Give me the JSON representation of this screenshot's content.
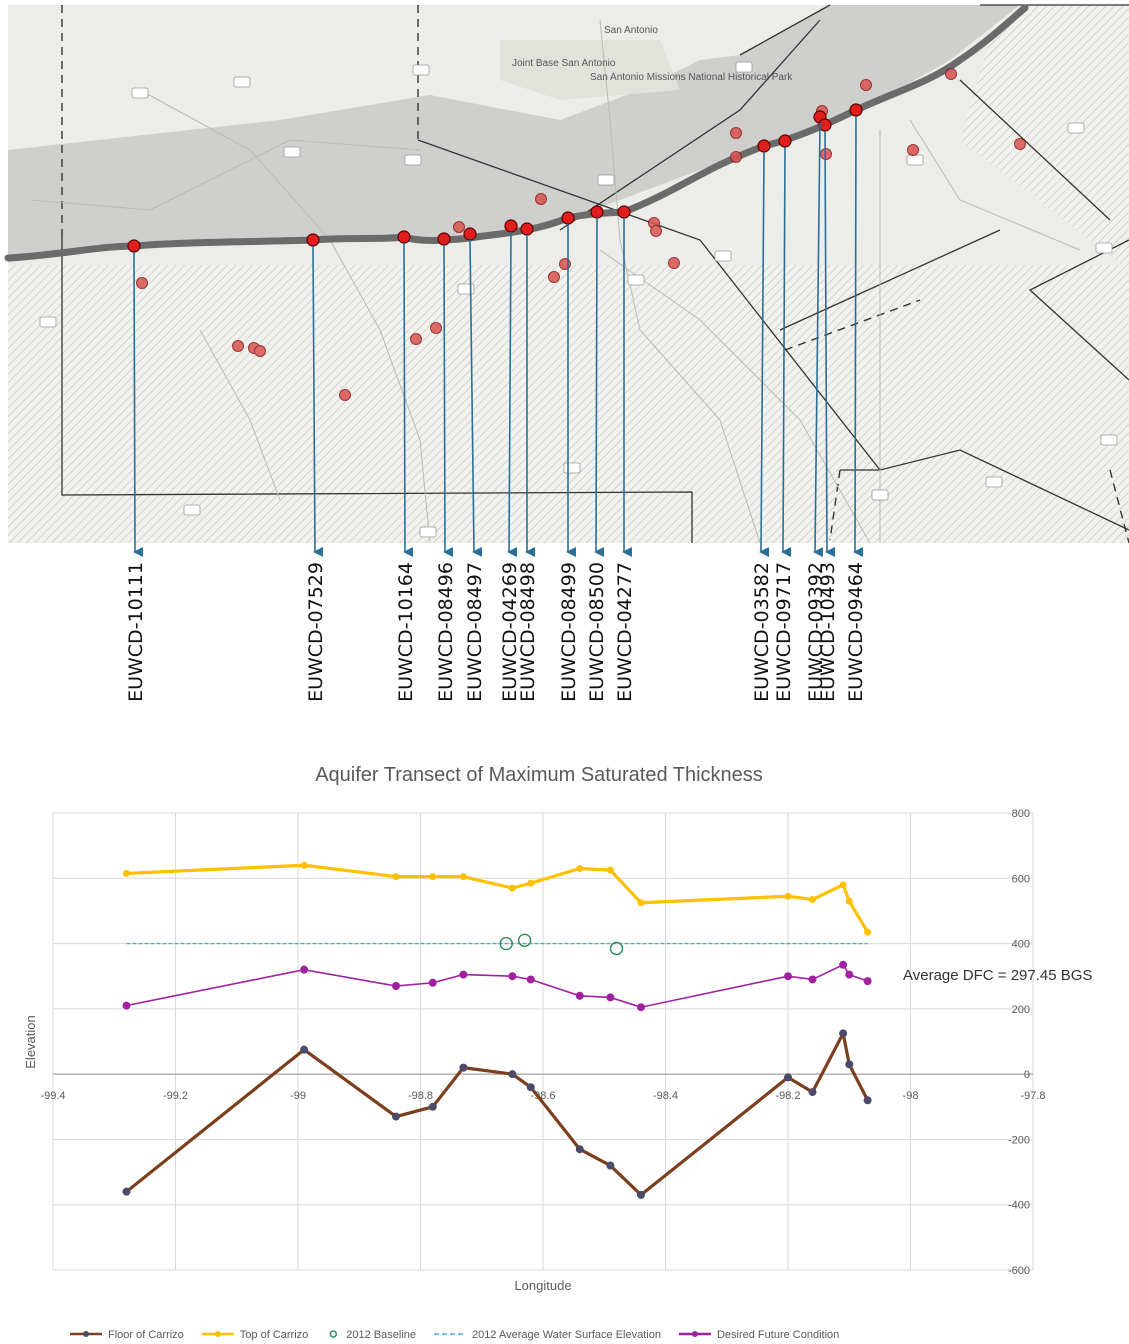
{
  "map": {
    "place_labels": [
      "San Antonio",
      "Joint Base San Antonio",
      "San Antonio Missions National Historical Park"
    ],
    "well_labels": [
      "EUWCD-10111",
      "EUWCD-07529",
      "EUWCD-10164",
      "EUWCD-08496",
      "EUWCD-08497",
      "EUWCD-04269",
      "EUWCD-08498",
      "EUWCD-08499",
      "EUWCD-08500",
      "EUWCD-04277",
      "EUWCD-03582",
      "EUWCD-09717",
      "EUWCD-09392",
      "EUWCD-10493",
      "EUWCD-09464"
    ],
    "colors": {
      "well_marker": "#d62828",
      "pointer_line": "#2a6f97",
      "outcrop_band": "#666666",
      "area_fill": "#d3d3d3"
    }
  },
  "chart_data": {
    "type": "line",
    "title": "Aquifer Transect of Maximum Saturated Thickness",
    "xlabel": "Longitude",
    "ylabel": "Elevation",
    "xlim": [
      -99.4,
      -97.8
    ],
    "ylim": [
      -600,
      800
    ],
    "x_ticks": [
      "-99.4",
      "-99.2",
      "-99",
      "-98.8",
      "-98.6",
      "-98.4",
      "-98.2",
      "-98",
      "-97.8"
    ],
    "y_ticks": [
      "800",
      "600",
      "400",
      "200",
      "0",
      "-200",
      "-400",
      "-600"
    ],
    "grid": true,
    "legend_position": "bottom",
    "series": [
      {
        "name": "Floor of Carrizo",
        "color": "#7b3f1d",
        "marker_color": "#4a4a6a",
        "x": [
          -99.28,
          -98.99,
          -98.84,
          -98.78,
          -98.73,
          -98.65,
          -98.62,
          -98.54,
          -98.49,
          -98.44,
          -98.2,
          -98.16,
          -98.11,
          -98.1,
          -98.07
        ],
        "y": [
          -360,
          75,
          -130,
          -100,
          20,
          0,
          -40,
          -230,
          -280,
          -370,
          -10,
          -55,
          125,
          30,
          -80
        ]
      },
      {
        "name": "Top of Carrizo",
        "color": "#ffc000",
        "marker_color": "#ffc000",
        "x": [
          -99.28,
          -98.99,
          -98.84,
          -98.78,
          -98.73,
          -98.65,
          -98.62,
          -98.54,
          -98.49,
          -98.44,
          -98.2,
          -98.16,
          -98.11,
          -98.1,
          -98.07
        ],
        "y": [
          615,
          640,
          605,
          605,
          605,
          570,
          585,
          630,
          625,
          525,
          545,
          535,
          580,
          530,
          435
        ]
      },
      {
        "name": "2012 Baseline",
        "color": "#2e8b57",
        "x": [
          -98.66,
          -98.63,
          -98.48
        ],
        "y": [
          400,
          410,
          385
        ]
      },
      {
        "name": "2012 Average Water Surface Elevation",
        "color": "#4bacc6",
        "x": [
          -99.28,
          -98.07
        ],
        "y": [
          400,
          400
        ]
      },
      {
        "name": "Desired Future Condition",
        "color": "#a020a0",
        "marker_color": "#a020a0",
        "x": [
          -99.28,
          -98.99,
          -98.84,
          -98.78,
          -98.73,
          -98.65,
          -98.62,
          -98.54,
          -98.49,
          -98.44,
          -98.2,
          -98.16,
          -98.11,
          -98.1,
          -98.07
        ],
        "y": [
          210,
          320,
          270,
          280,
          305,
          300,
          290,
          240,
          235,
          205,
          300,
          290,
          335,
          305,
          285
        ]
      }
    ],
    "annotation": "Average DFC = 297.45 BGS"
  }
}
